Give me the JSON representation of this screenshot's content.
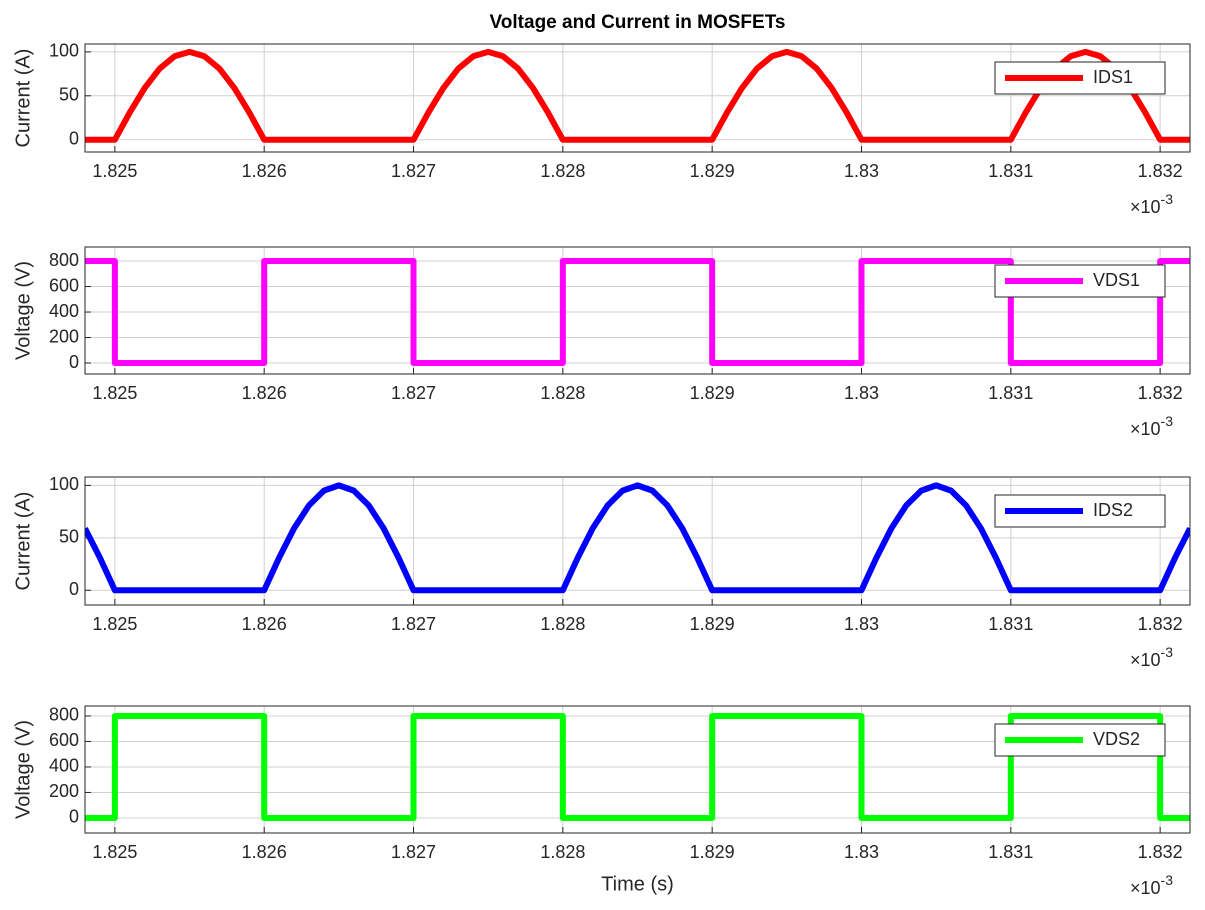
{
  "chart_data": [
    {
      "type": "line",
      "title": "Voltage and Current in MOSFETs",
      "ylabel": "Current (A)",
      "x_multiplier": {
        "base": "×10",
        "exponent": "-3"
      },
      "x": [
        1.8248,
        1.825,
        1.8251,
        1.8252,
        1.8253,
        1.8254,
        1.8255,
        1.8256,
        1.8257,
        1.8258,
        1.8259,
        1.826,
        1.827,
        1.8271,
        1.8272,
        1.8273,
        1.8274,
        1.8275,
        1.8276,
        1.8277,
        1.8278,
        1.8279,
        1.828,
        1.829,
        1.8291,
        1.8292,
        1.8293,
        1.8294,
        1.8295,
        1.8296,
        1.8297,
        1.8298,
        1.8299,
        1.83,
        1.831,
        1.8311,
        1.8312,
        1.8313,
        1.8314,
        1.8315,
        1.8316,
        1.8317,
        1.8318,
        1.8319,
        1.832,
        1.8322
      ],
      "series": [
        {
          "name": "IDS1",
          "color": "#ff0000",
          "values": [
            0,
            0,
            31,
            59,
            81,
            95,
            100,
            95,
            81,
            59,
            31,
            0,
            0,
            31,
            59,
            81,
            95,
            100,
            95,
            81,
            59,
            31,
            0,
            0,
            31,
            59,
            81,
            95,
            100,
            95,
            81,
            59,
            31,
            0,
            0,
            31,
            59,
            81,
            95,
            100,
            95,
            81,
            59,
            31,
            0,
            0
          ]
        }
      ],
      "xlim": [
        1.8248,
        1.8322
      ],
      "ylim": [
        -14,
        109
      ],
      "xticks": [
        1.825,
        1.826,
        1.827,
        1.828,
        1.829,
        1.83,
        1.831,
        1.832
      ],
      "yticks": [
        0,
        50,
        100
      ],
      "grid": true,
      "legend": "northeast"
    },
    {
      "type": "line",
      "ylabel": "Voltage (V)",
      "x_multiplier": {
        "base": "×10",
        "exponent": "-3"
      },
      "x": [
        1.8248,
        1.825,
        1.825,
        1.826,
        1.826,
        1.827,
        1.827,
        1.828,
        1.828,
        1.829,
        1.829,
        1.83,
        1.83,
        1.831,
        1.831,
        1.832,
        1.832,
        1.8322
      ],
      "series": [
        {
          "name": "VDS1",
          "color": "#ff00ff",
          "values": [
            800,
            800,
            0,
            0,
            800,
            800,
            0,
            0,
            800,
            800,
            0,
            0,
            800,
            800,
            0,
            0,
            800,
            800
          ]
        }
      ],
      "xlim": [
        1.8248,
        1.8322
      ],
      "ylim": [
        -86,
        910
      ],
      "xticks": [
        1.825,
        1.826,
        1.827,
        1.828,
        1.829,
        1.83,
        1.831,
        1.832
      ],
      "yticks": [
        0,
        200,
        400,
        600,
        800
      ],
      "grid": true,
      "legend": "northeast"
    },
    {
      "type": "line",
      "ylabel": "Current (A)",
      "x_multiplier": {
        "base": "×10",
        "exponent": "-3"
      },
      "x": [
        1.8248,
        1.8249,
        1.825,
        1.826,
        1.8261,
        1.8262,
        1.8263,
        1.8264,
        1.8265,
        1.8266,
        1.8267,
        1.8268,
        1.8269,
        1.827,
        1.828,
        1.8281,
        1.8282,
        1.8283,
        1.8284,
        1.8285,
        1.8286,
        1.8287,
        1.8288,
        1.8289,
        1.829,
        1.83,
        1.8301,
        1.8302,
        1.8303,
        1.8304,
        1.8305,
        1.8306,
        1.8307,
        1.8308,
        1.8309,
        1.831,
        1.832,
        1.8321,
        1.8322
      ],
      "series": [
        {
          "name": "IDS2",
          "color": "#0000ff",
          "values": [
            59,
            31,
            0,
            0,
            31,
            59,
            81,
            95,
            100,
            95,
            81,
            59,
            31,
            0,
            0,
            31,
            59,
            81,
            95,
            100,
            95,
            81,
            59,
            31,
            0,
            0,
            31,
            59,
            81,
            95,
            100,
            95,
            81,
            59,
            31,
            0,
            0,
            31,
            59
          ]
        }
      ],
      "xlim": [
        1.8248,
        1.8322
      ],
      "ylim": [
        -14,
        108
      ],
      "xticks": [
        1.825,
        1.826,
        1.827,
        1.828,
        1.829,
        1.83,
        1.831,
        1.832
      ],
      "yticks": [
        0,
        50,
        100
      ],
      "grid": true,
      "legend": "northeast"
    },
    {
      "type": "line",
      "ylabel": "Voltage (V)",
      "xlabel": "Time (s)",
      "x_multiplier": {
        "base": "×10",
        "exponent": "-3"
      },
      "x": [
        1.8248,
        1.825,
        1.825,
        1.826,
        1.826,
        1.827,
        1.827,
        1.828,
        1.828,
        1.829,
        1.829,
        1.83,
        1.83,
        1.831,
        1.831,
        1.832,
        1.832,
        1.8322
      ],
      "series": [
        {
          "name": "VDS2",
          "color": "#00ff00",
          "values": [
            0,
            0,
            800,
            800,
            0,
            0,
            800,
            800,
            0,
            0,
            800,
            800,
            0,
            0,
            800,
            800,
            0,
            0
          ]
        }
      ],
      "xlim": [
        1.8248,
        1.8322
      ],
      "ylim": [
        -118,
        878
      ],
      "xticks": [
        1.825,
        1.826,
        1.827,
        1.828,
        1.829,
        1.83,
        1.831,
        1.832
      ],
      "yticks": [
        0,
        200,
        400,
        600,
        800
      ],
      "grid": true,
      "legend": "northeast"
    }
  ]
}
